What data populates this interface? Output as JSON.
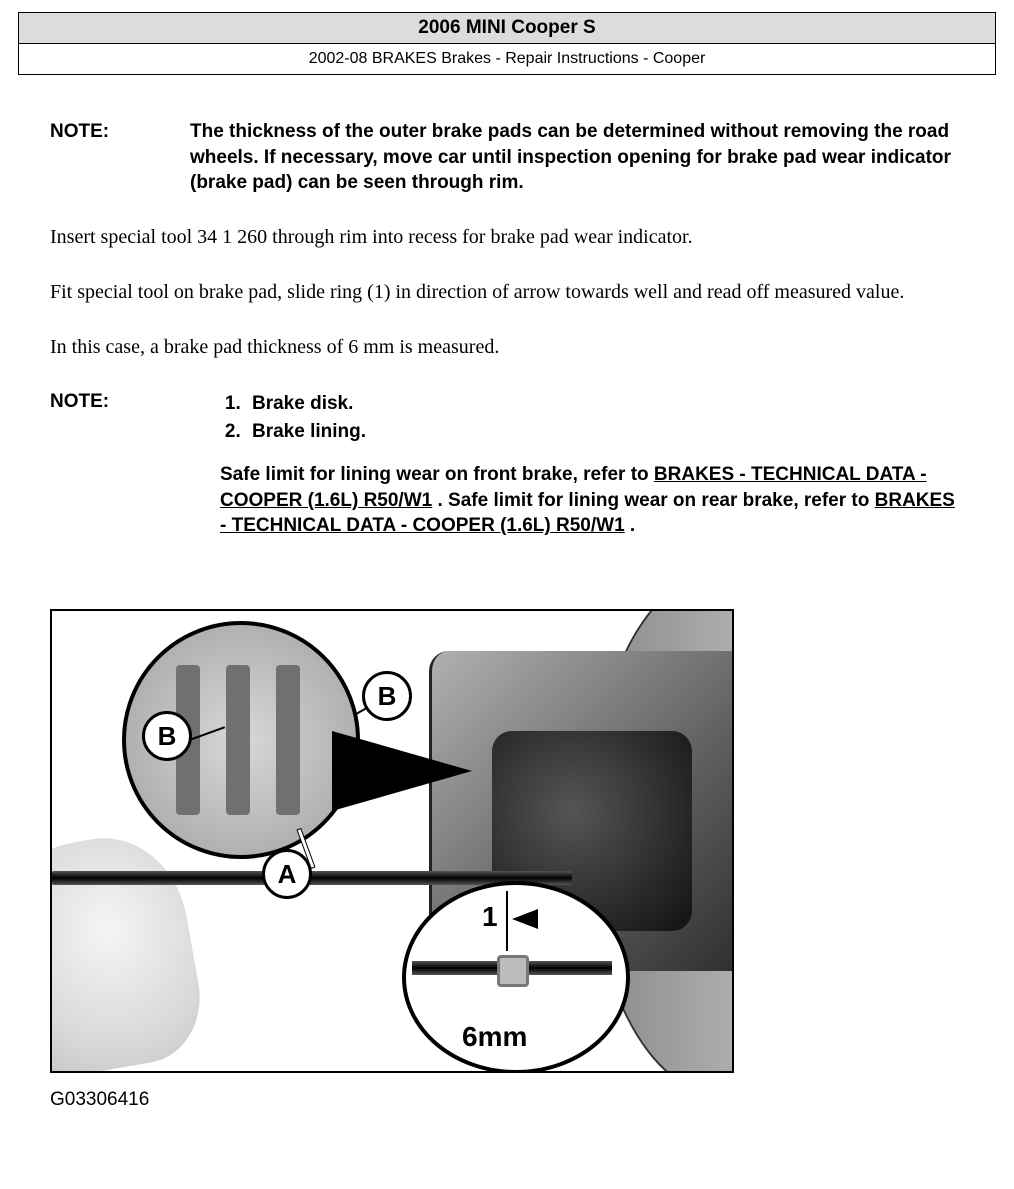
{
  "header": {
    "title": "2006 MINI Cooper S",
    "subtitle": "2002-08 BRAKES Brakes - Repair Instructions - Cooper"
  },
  "note1": {
    "label": "NOTE:",
    "text": "The thickness of the outer brake pads can be determined without removing the road wheels. If necessary, move car until inspection opening for brake pad wear indicator (brake pad) can be seen through rim."
  },
  "paragraphs": {
    "p1": "Insert special tool 34 1 260 through rim into recess for brake pad wear indicator.",
    "p2": "Fit special tool on brake pad, slide ring (1) in direction of arrow towards well and read off measured value.",
    "p3": "In this case, a brake pad thickness of 6 mm is measured."
  },
  "note2": {
    "label": "NOTE:",
    "item1": "Brake disk.",
    "item2": "Brake lining.",
    "refs": {
      "pre1": "Safe limit for lining wear on front brake, refer to ",
      "link1": "BRAKES - TECHNICAL DATA - COOPER (1.6L) R50/W1",
      "mid": " . Safe limit for lining wear on rear brake, refer to ",
      "link2": "BRAKES - TECHNICAL DATA - COOPER (1.6L) R50/W1",
      "post": " ."
    }
  },
  "figure": {
    "labels": {
      "b": "B",
      "a": "A",
      "one": "1",
      "arrow": "←",
      "measure": "6mm"
    },
    "id": "G03306416"
  },
  "colors": {
    "header_bg": "#dcdcdc",
    "border": "#000000",
    "text": "#000000",
    "page_bg": "#ffffff"
  }
}
